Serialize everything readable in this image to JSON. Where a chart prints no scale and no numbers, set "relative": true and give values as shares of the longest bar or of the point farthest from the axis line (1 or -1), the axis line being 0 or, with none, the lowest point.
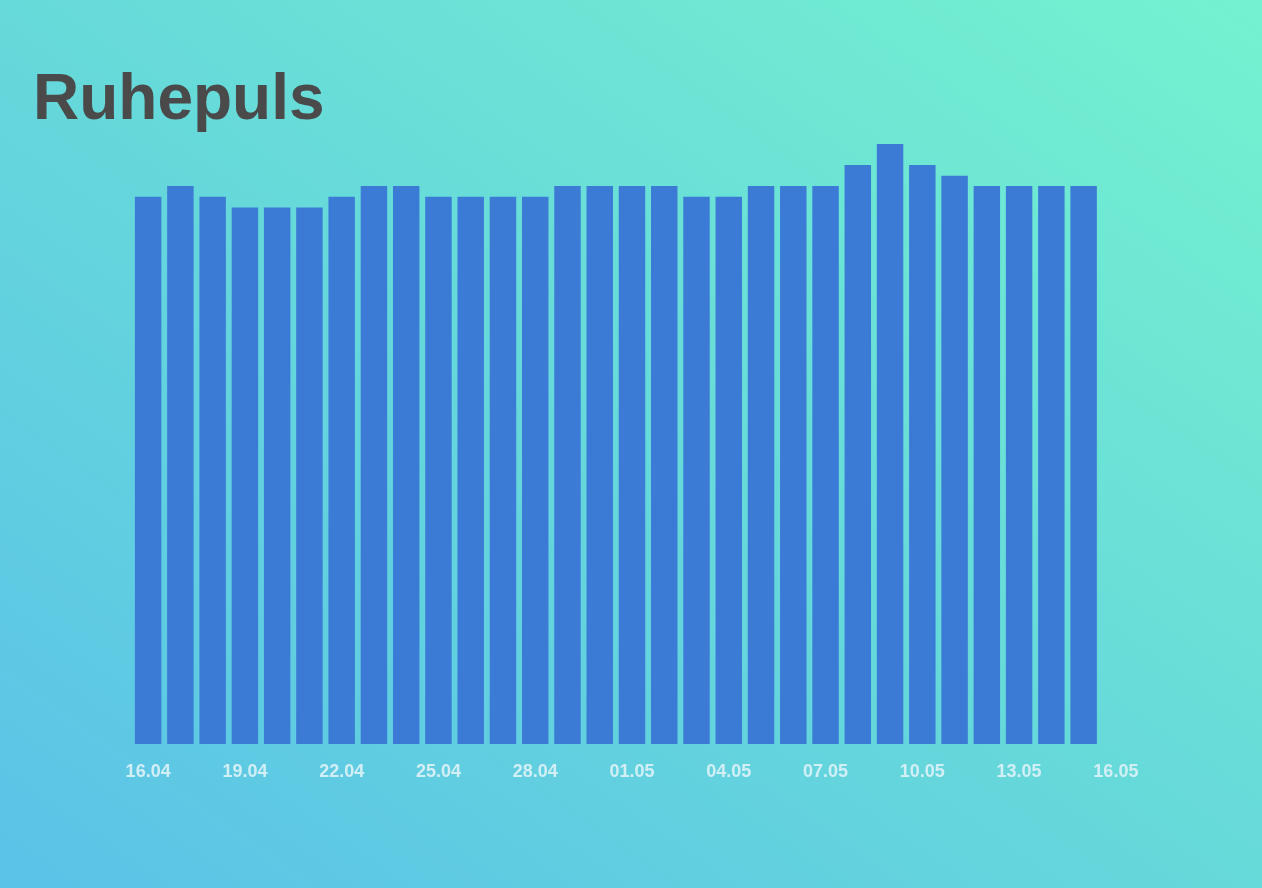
{
  "chart_data": {
    "type": "bar",
    "title": "Ruhepuls",
    "categories": [
      "16.04",
      null,
      null,
      "19.04",
      null,
      null,
      "22.04",
      null,
      null,
      "25.04",
      null,
      null,
      "28.04",
      null,
      null,
      "01.05",
      null,
      null,
      "04.05",
      null,
      null,
      "07.05",
      null,
      null,
      "10.05",
      null,
      null,
      "13.05",
      null,
      null,
      "16.05"
    ],
    "values": [
      0.912,
      0.93,
      0.912,
      0.894,
      0.894,
      0.894,
      0.912,
      0.93,
      0.93,
      0.912,
      0.912,
      0.912,
      0.912,
      0.93,
      0.93,
      0.93,
      0.93,
      0.912,
      0.912,
      0.93,
      0.93,
      0.93,
      0.965,
      1,
      0.965,
      0.947,
      0.93,
      0.93,
      0.93,
      0.93,
      null
    ],
    "color": "#3b7ad5",
    "relative": true
  }
}
